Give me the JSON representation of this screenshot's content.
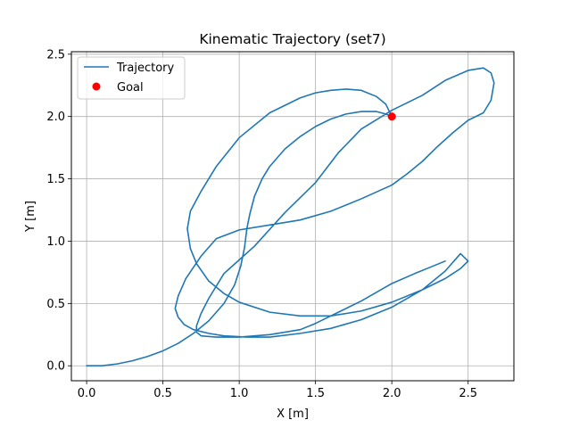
{
  "chart_data": {
    "type": "line",
    "title": "Kinematic Trajectory (set7)",
    "xlabel": "X [m]",
    "ylabel": "Y [m]",
    "xlim": [
      -0.1,
      2.8
    ],
    "ylim": [
      -0.12,
      2.52
    ],
    "xticks": [
      0.0,
      0.5,
      1.0,
      1.5,
      2.0,
      2.5
    ],
    "yticks": [
      0.0,
      0.5,
      1.0,
      1.5,
      2.0,
      2.5
    ],
    "xtick_labels": [
      "0.0",
      "0.5",
      "1.0",
      "1.5",
      "2.0",
      "2.5"
    ],
    "ytick_labels": [
      "0.0",
      "0.5",
      "1.0",
      "1.5",
      "2.0",
      "2.5"
    ],
    "grid": true,
    "legend_position": "upper-left",
    "series": [
      {
        "name": "Trajectory",
        "color": "#1f77b4",
        "x": [
          0.0,
          0.1,
          0.2,
          0.3,
          0.4,
          0.5,
          0.6,
          0.7,
          0.8,
          0.9,
          0.97,
          1.01,
          1.035,
          1.05,
          1.07,
          1.1,
          1.15,
          1.2,
          1.3,
          1.4,
          1.5,
          1.6,
          1.7,
          1.8,
          1.9,
          1.96,
          2.0,
          1.96,
          1.9,
          1.8,
          1.7,
          1.6,
          1.5,
          1.4,
          1.2,
          1.0,
          0.85,
          0.75,
          0.68,
          0.66,
          0.68,
          0.72,
          0.8,
          0.9,
          1.0,
          1.2,
          1.4,
          1.5,
          1.6,
          1.8,
          2.0,
          2.2,
          2.35,
          2.45,
          2.5,
          2.45,
          2.35,
          2.2,
          2.0,
          1.8,
          1.6,
          1.4,
          1.2,
          1.05,
          0.9,
          0.8,
          0.7,
          0.64,
          0.6,
          0.58,
          0.6,
          0.65,
          0.75,
          0.85,
          1.0,
          1.2,
          1.4,
          1.6,
          1.8,
          2.0,
          2.1,
          2.2,
          2.3,
          2.4,
          2.5,
          2.6,
          2.65,
          2.67,
          2.65,
          2.6,
          2.5,
          2.35,
          2.2,
          2.0,
          1.8,
          1.65,
          1.5,
          1.3,
          1.1,
          0.9,
          0.8,
          0.75,
          0.72,
          0.72,
          0.75,
          0.85,
          1.0,
          1.2,
          1.4,
          1.5,
          1.6,
          1.8,
          2.0,
          2.15,
          2.25,
          2.35
        ],
        "y": [
          0.0,
          0.0,
          0.015,
          0.04,
          0.075,
          0.12,
          0.18,
          0.26,
          0.36,
          0.5,
          0.65,
          0.8,
          0.95,
          1.1,
          1.22,
          1.36,
          1.5,
          1.6,
          1.74,
          1.84,
          1.92,
          1.98,
          2.02,
          2.04,
          2.04,
          2.02,
          2.0,
          2.1,
          2.16,
          2.21,
          2.22,
          2.21,
          2.19,
          2.15,
          2.03,
          1.83,
          1.6,
          1.4,
          1.24,
          1.1,
          0.94,
          0.82,
          0.68,
          0.58,
          0.51,
          0.43,
          0.4,
          0.4,
          0.4,
          0.44,
          0.51,
          0.61,
          0.7,
          0.78,
          0.84,
          0.9,
          0.76,
          0.61,
          0.47,
          0.37,
          0.3,
          0.26,
          0.23,
          0.23,
          0.24,
          0.26,
          0.29,
          0.33,
          0.39,
          0.46,
          0.56,
          0.7,
          0.88,
          1.02,
          1.09,
          1.13,
          1.17,
          1.24,
          1.34,
          1.45,
          1.54,
          1.64,
          1.76,
          1.87,
          1.97,
          2.03,
          2.13,
          2.27,
          2.35,
          2.39,
          2.37,
          2.29,
          2.17,
          2.05,
          1.9,
          1.71,
          1.47,
          1.23,
          0.96,
          0.74,
          0.54,
          0.42,
          0.32,
          0.27,
          0.24,
          0.23,
          0.23,
          0.25,
          0.29,
          0.34,
          0.4,
          0.52,
          0.66,
          0.74,
          0.79,
          0.84
        ]
      },
      {
        "name": "Goal",
        "color": "#ff0000",
        "marker": "circle",
        "x": [
          2.0
        ],
        "y": [
          2.0
        ]
      }
    ]
  }
}
